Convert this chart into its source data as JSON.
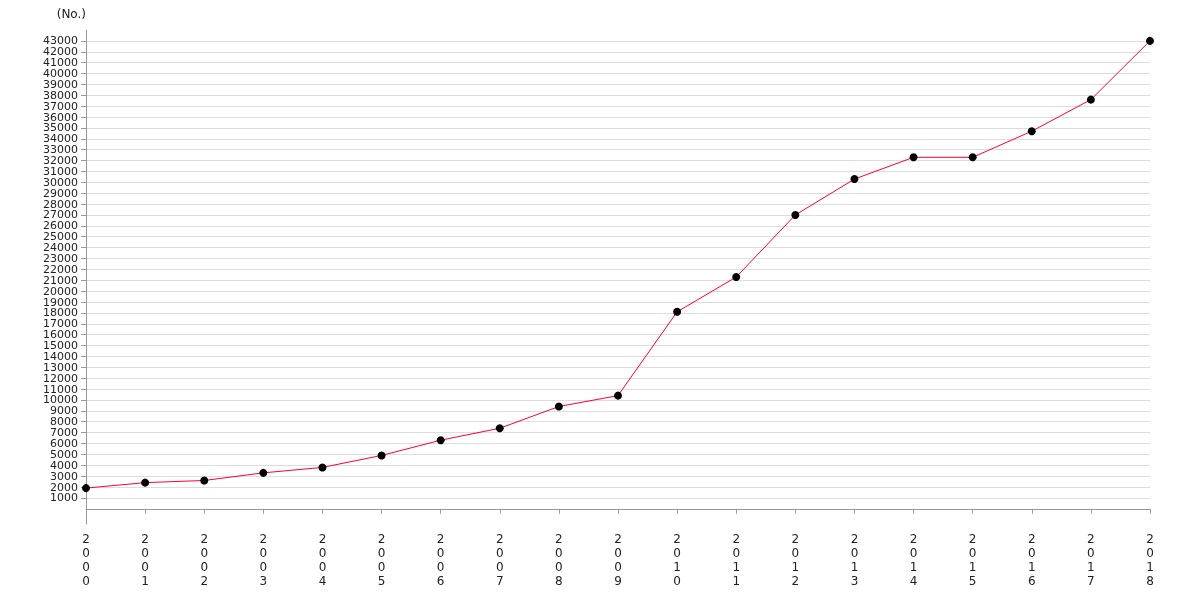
{
  "chart_data": {
    "type": "line",
    "ylabel": "(No.)",
    "categories": [
      "2000",
      "2001",
      "2002",
      "2003",
      "2004",
      "2005",
      "2006",
      "2007",
      "2008",
      "2009",
      "2010",
      "2011",
      "2012",
      "2013",
      "2014",
      "2015",
      "2016",
      "2017",
      "2018"
    ],
    "series": [
      {
        "color": "#ff0033",
        "values": [
          1900,
          2400,
          2600,
          3300,
          3800,
          4900,
          6300,
          7400,
          9400,
          10400,
          18100,
          21300,
          27000,
          30300,
          32300,
          32300,
          34700,
          37600,
          43000
        ]
      }
    ],
    "ylim": [
      -1400,
      44000
    ],
    "yticks": [
      1000,
      2000,
      3000,
      4000,
      5000,
      6000,
      7000,
      8000,
      9000,
      10000,
      11000,
      12000,
      13000,
      14000,
      15000,
      16000,
      17000,
      18000,
      19000,
      20000,
      21000,
      22000,
      23000,
      24000,
      25000,
      26000,
      27000,
      28000,
      29000,
      30000,
      31000,
      32000,
      33000,
      34000,
      35000,
      36000,
      37000,
      38000,
      39000,
      40000,
      41000,
      42000,
      43000
    ],
    "grid": "y",
    "marker": "circle",
    "line_style": "solid"
  }
}
